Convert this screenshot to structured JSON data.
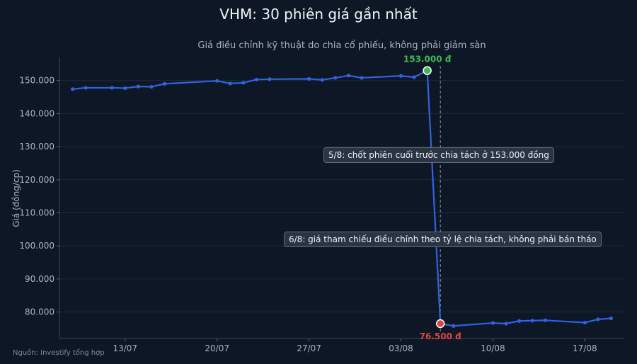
{
  "title": "VHM: 30 phiên giá gần nhất",
  "subtitle": "Giá điều chỉnh kỹ thuật do chia cổ phiếu, không phải giảm sàn",
  "source": "Nguồn: Investify tổng hợp",
  "colors": {
    "background": "#0e1726",
    "line": "#2f63e0",
    "high_marker": "#3dbb55",
    "low_marker": "#e0453f",
    "high_label": "#3dbb55",
    "low_label": "#e0453f",
    "grid": "#1d2a3b"
  },
  "chart_data": {
    "type": "line",
    "xlabel": "",
    "ylabel": "Giá (đồng/cp)",
    "ylim": [
      72000,
      157000
    ],
    "yticks": [
      80000,
      90000,
      100000,
      110000,
      120000,
      130000,
      140000,
      150000
    ],
    "ytick_labels": [
      "80.000",
      "90.000",
      "100.000",
      "110.000",
      "120.000",
      "130.000",
      "140.000",
      "150.000"
    ],
    "xticks": [
      "2025-07-13",
      "2025-07-20",
      "2025-07-27",
      "2025-08-03",
      "2025-08-10",
      "2025-08-17"
    ],
    "xtick_labels": [
      "13/07",
      "20/07",
      "27/07",
      "03/08",
      "10/08",
      "17/08"
    ],
    "xlim": [
      "2025-07-08",
      "2025-08-20"
    ],
    "grid": true,
    "series": [
      {
        "points": [
          {
            "x": "2025-07-09",
            "y": 147400
          },
          {
            "x": "2025-07-10",
            "y": 147800
          },
          {
            "x": "2025-07-12",
            "y": 147800
          },
          {
            "x": "2025-07-13",
            "y": 147700
          },
          {
            "x": "2025-07-14",
            "y": 148200
          },
          {
            "x": "2025-07-15",
            "y": 148100
          },
          {
            "x": "2025-07-16",
            "y": 149000
          },
          {
            "x": "2025-07-20",
            "y": 149900
          },
          {
            "x": "2025-07-21",
            "y": 149100
          },
          {
            "x": "2025-07-22",
            "y": 149300
          },
          {
            "x": "2025-07-23",
            "y": 150300
          },
          {
            "x": "2025-07-24",
            "y": 150400
          },
          {
            "x": "2025-07-27",
            "y": 150500
          },
          {
            "x": "2025-07-28",
            "y": 150200
          },
          {
            "x": "2025-07-29",
            "y": 150800
          },
          {
            "x": "2025-07-30",
            "y": 151500
          },
          {
            "x": "2025-07-31",
            "y": 150800
          },
          {
            "x": "2025-08-03",
            "y": 151400
          },
          {
            "x": "2025-08-04",
            "y": 151000
          },
          {
            "x": "2025-08-05",
            "y": 153000
          },
          {
            "x": "2025-08-06",
            "y": 76500
          },
          {
            "x": "2025-08-07",
            "y": 75800
          },
          {
            "x": "2025-08-10",
            "y": 76700
          },
          {
            "x": "2025-08-11",
            "y": 76500
          },
          {
            "x": "2025-08-12",
            "y": 77300
          },
          {
            "x": "2025-08-13",
            "y": 77400
          },
          {
            "x": "2025-08-14",
            "y": 77500
          },
          {
            "x": "2025-08-17",
            "y": 76800
          },
          {
            "x": "2025-08-18",
            "y": 77800
          },
          {
            "x": "2025-08-19",
            "y": 78100
          }
        ]
      }
    ],
    "highlights": [
      {
        "x": "2025-08-05",
        "y": 153000,
        "label": "153.000 đ",
        "kind": "high"
      },
      {
        "x": "2025-08-06",
        "y": 76500,
        "label": "76.500 đ",
        "kind": "low"
      }
    ],
    "vline_x": "2025-08-06",
    "annotations": [
      {
        "text": "5/8: chốt phiên cuối trước chia tách ở 153.000 đồng"
      },
      {
        "text": "6/8: giá tham chiếu điều chỉnh theo tỷ lệ chia tách, không phải bán tháo"
      }
    ]
  }
}
